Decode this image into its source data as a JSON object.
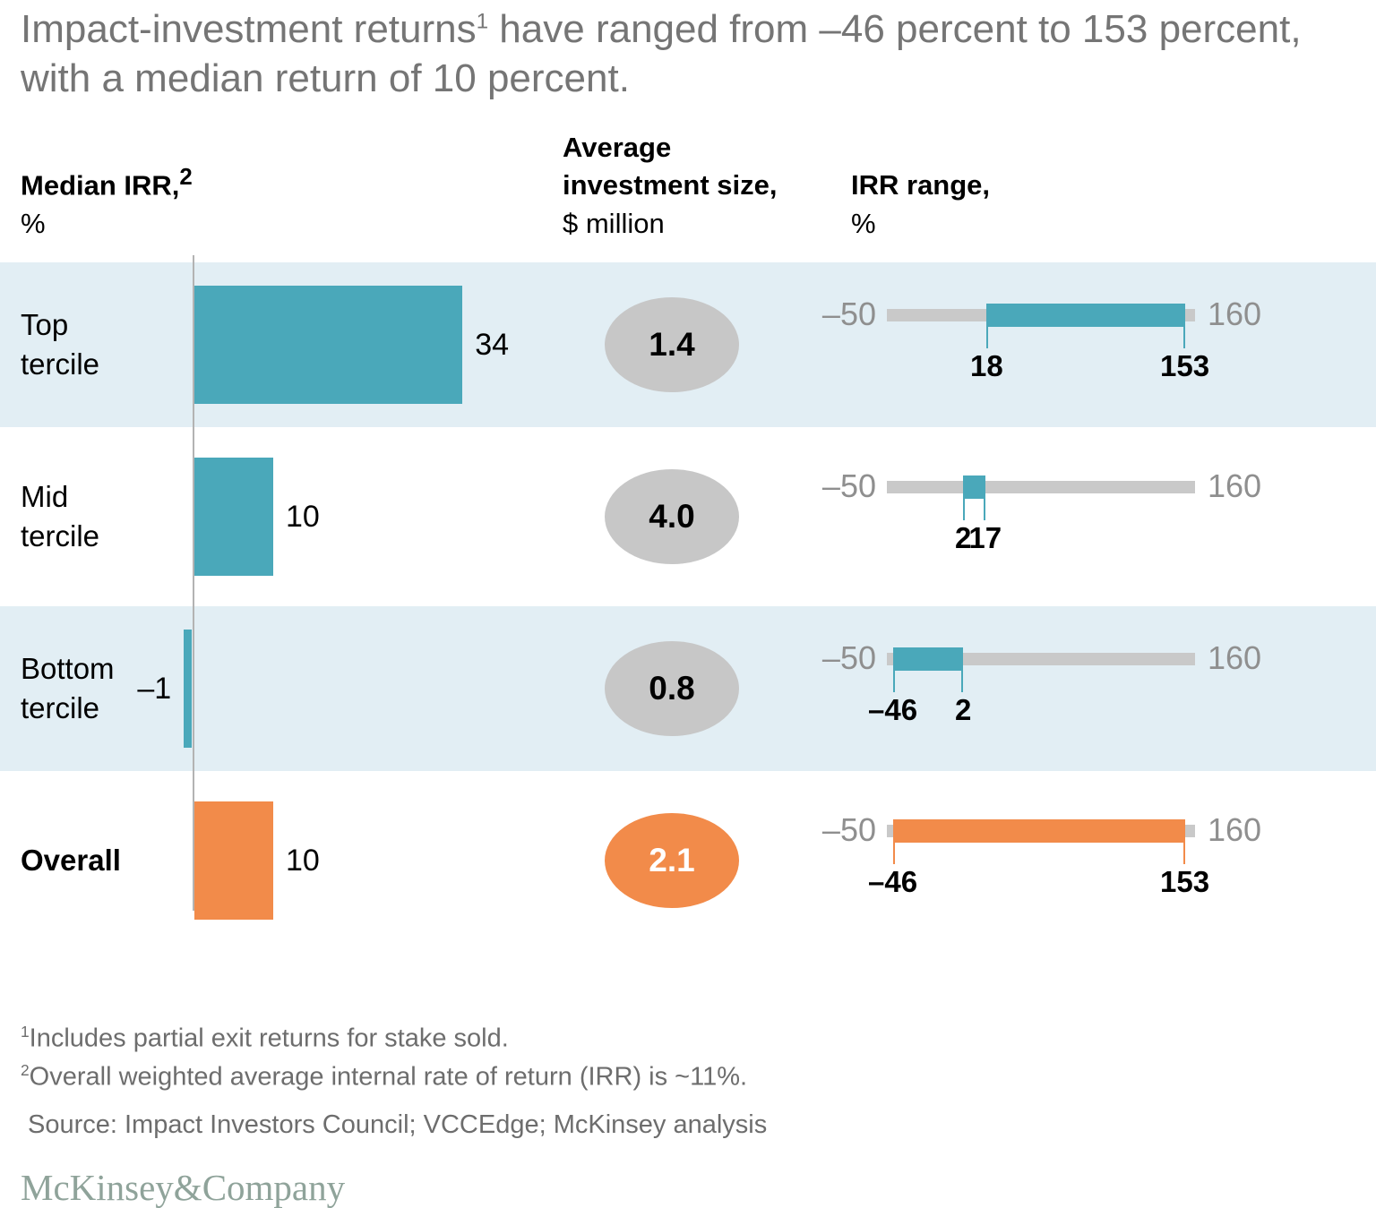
{
  "title": {
    "pre": "Impact-investment returns",
    "sup": "1",
    "post": " have ranged from –46 percent to 153 percent, with a median return of 10 percent."
  },
  "columns": {
    "median_irr": {
      "label": "Median IRR,",
      "sup": "2",
      "unit": "%"
    },
    "avg_investment": {
      "line1": "Average",
      "line2": "investment size,",
      "unit": "$ million"
    },
    "irr_range": {
      "label": "IRR range,",
      "unit": "%"
    }
  },
  "axis": {
    "min": -50,
    "max": 160,
    "min_label": "–50",
    "max_label": "160"
  },
  "rows": [
    {
      "name": "top-tercile",
      "label_lines": [
        "Top",
        "tercile"
      ],
      "bold": false,
      "shaded": true,
      "accent": "teal",
      "median_irr": {
        "value": 34,
        "label": "34"
      },
      "avg_size": {
        "label": "1.4"
      },
      "irr_range": {
        "min": 18,
        "max": 153,
        "min_label": "18",
        "max_label": "153"
      }
    },
    {
      "name": "mid-tercile",
      "label_lines": [
        "Mid",
        "tercile"
      ],
      "bold": false,
      "shaded": false,
      "accent": "teal",
      "median_irr": {
        "value": 10,
        "label": "10"
      },
      "avg_size": {
        "label": "4.0"
      },
      "irr_range": {
        "min": 2,
        "max": 17,
        "min_label": "2",
        "max_label": "17"
      }
    },
    {
      "name": "bottom-tercile",
      "label_lines": [
        "Bottom",
        "tercile"
      ],
      "bold": false,
      "shaded": true,
      "accent": "teal",
      "median_irr": {
        "value": -1,
        "label": "–1"
      },
      "avg_size": {
        "label": "0.8"
      },
      "irr_range": {
        "min": -46,
        "max": 2,
        "min_label": "–46",
        "max_label": "2"
      }
    },
    {
      "name": "overall",
      "label_lines": [
        "Overall"
      ],
      "bold": true,
      "shaded": false,
      "accent": "orange",
      "median_irr": {
        "value": 10,
        "label": "10"
      },
      "avg_size": {
        "label": "2.1"
      },
      "irr_range": {
        "min": -46,
        "max": 153,
        "min_label": "–46",
        "max_label": "153"
      }
    }
  ],
  "footnotes": [
    {
      "sup": "1",
      "text": "Includes partial exit returns for stake sold."
    },
    {
      "sup": "2",
      "text": "Overall weighted average internal rate of return (IRR) is ~11%."
    }
  ],
  "source": "Source: Impact Investors Council; VCCEdge; McKinsey analysis",
  "logo": "McKinsey&Company",
  "colors": {
    "teal": "#4aa8ba",
    "orange": "#f28b4a",
    "row_shade": "#e2eef4",
    "track_gray": "#c9c9c9",
    "ellipse_gray": "#c7c7c7",
    "title_gray": "#757575",
    "cap_label_gray": "#8f8f8f",
    "axis_line_gray": "#b3b3b3",
    "logo_color": "#8fa39a"
  },
  "chart_data": {
    "type": "bar",
    "orientation": "horizontal",
    "title": "Impact-investment returns have ranged from –46 percent to 153 percent, with a median return of 10 percent.",
    "categories": [
      "Top tercile",
      "Mid tercile",
      "Bottom tercile",
      "Overall"
    ],
    "series": [
      {
        "name": "Median IRR, %",
        "values": [
          34,
          10,
          -1,
          10
        ]
      },
      {
        "name": "Average investment size, $ million",
        "values": [
          1.4,
          4.0,
          0.8,
          2.1
        ]
      },
      {
        "name": "IRR range min, %",
        "values": [
          18,
          2,
          -46,
          -46
        ]
      },
      {
        "name": "IRR range max, %",
        "values": [
          153,
          17,
          2,
          153
        ]
      }
    ],
    "range_axis": {
      "label": "IRR range, %",
      "min": -50,
      "max": 160
    },
    "grid": false,
    "legend_position": "none"
  }
}
